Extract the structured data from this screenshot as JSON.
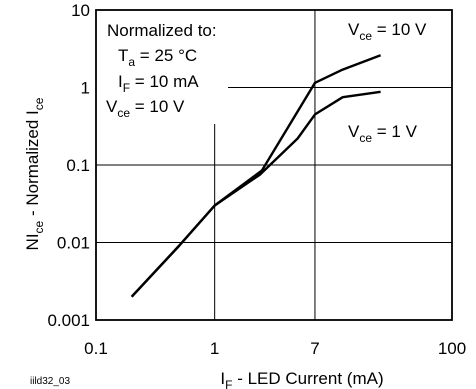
{
  "chart_data": {
    "type": "line",
    "x_scale": "log",
    "y_scale": "log",
    "xlim": [
      0.1,
      100
    ],
    "ylim": [
      0.001,
      10
    ],
    "x_ticks": [
      0.1,
      1,
      7,
      100
    ],
    "x_tick_labels": [
      "0.1",
      "1",
      "7",
      "100"
    ],
    "y_ticks": [
      0.001,
      0.01,
      0.1,
      1,
      10
    ],
    "y_tick_labels": [
      "0.001",
      "0.01",
      "0.1",
      "1",
      "10"
    ],
    "grid": true,
    "xlabel": {
      "main": "I",
      "sub": "F",
      "rest": " - LED Current (mA)"
    },
    "ylabel": {
      "a": "NI",
      "a_sub": "ce",
      "b": " - Normalized I",
      "b_sub": "ce"
    },
    "figure_code": "iild32_03",
    "conditions": {
      "header": "Normalized to:",
      "lines": [
        {
          "pre": "T",
          "sub": "a",
          "post": " = 25 °C"
        },
        {
          "pre": "I",
          "sub": "F",
          "post": " = 10 mA"
        },
        {
          "pre": "V",
          "sub": "ce",
          "post": " = 10 V"
        }
      ]
    },
    "series": [
      {
        "label": {
          "pre": "V",
          "sub": "ce",
          "post": " = 10 V"
        },
        "x": [
          0.2,
          0.5,
          1,
          2.5,
          7,
          12,
          25
        ],
        "y": [
          0.002,
          0.009,
          0.03,
          0.085,
          1.15,
          1.7,
          2.6
        ]
      },
      {
        "label": {
          "pre": "V",
          "sub": "ce",
          "post": " = 1 V"
        },
        "x": [
          0.2,
          0.5,
          1,
          2.4,
          5,
          7,
          12,
          25
        ],
        "y": [
          0.002,
          0.009,
          0.03,
          0.075,
          0.22,
          0.45,
          0.75,
          0.88
        ]
      }
    ]
  }
}
